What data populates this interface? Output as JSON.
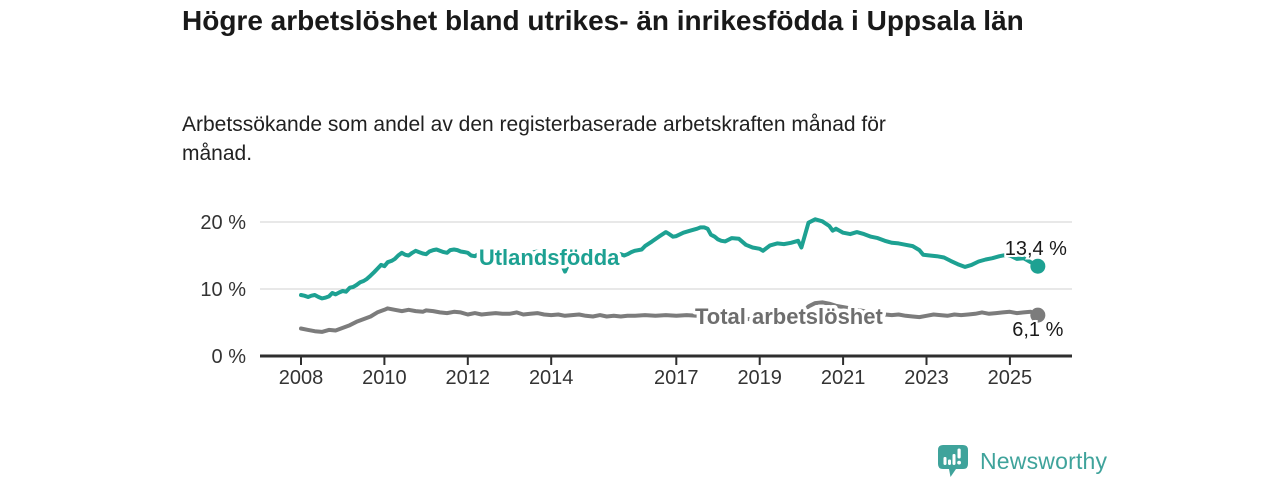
{
  "chart_data": {
    "type": "line",
    "title": "Högre arbetslöshet bland utrikes- än inrikesfödda i Uppsala län",
    "subtitle": "Arbetssökande som andel av den registerbaserade arbetskraften månad för månad.",
    "x_axis": {
      "ticks": [
        2008,
        2010,
        2012,
        2014,
        2017,
        2019,
        2021,
        2023,
        2025
      ],
      "range": [
        2006.8,
        2026.5
      ]
    },
    "y_axis": {
      "unit": "%",
      "range": [
        0,
        21
      ],
      "grid": true,
      "ticks": [
        {
          "value": 0,
          "label": "0 %"
        },
        {
          "value": 10,
          "label": "10 %"
        },
        {
          "value": 20,
          "label": "20 %"
        }
      ]
    },
    "series": [
      {
        "id": "utlandsfodda",
        "name": "Utlandsfödda",
        "color": "#1DA192",
        "end_label": "13,4 %",
        "end_value": 13.4,
        "end_label_offset": [
          -2,
          -11
        ],
        "inline_label": {
          "x": 2013.95,
          "y": 13.6,
          "color": "#1DA192"
        },
        "points": [
          [
            2008.0,
            9.1
          ],
          [
            2008.08,
            9.0
          ],
          [
            2008.17,
            8.8
          ],
          [
            2008.25,
            9.0
          ],
          [
            2008.33,
            9.1
          ],
          [
            2008.42,
            8.8
          ],
          [
            2008.5,
            8.6
          ],
          [
            2008.58,
            8.7
          ],
          [
            2008.67,
            8.9
          ],
          [
            2008.75,
            9.4
          ],
          [
            2008.83,
            9.2
          ],
          [
            2008.92,
            9.5
          ],
          [
            2009.0,
            9.7
          ],
          [
            2009.08,
            9.6
          ],
          [
            2009.17,
            10.2
          ],
          [
            2009.25,
            10.3
          ],
          [
            2009.33,
            10.6
          ],
          [
            2009.42,
            11.0
          ],
          [
            2009.5,
            11.2
          ],
          [
            2009.58,
            11.5
          ],
          [
            2009.67,
            12.0
          ],
          [
            2009.75,
            12.5
          ],
          [
            2009.83,
            13.0
          ],
          [
            2009.92,
            13.6
          ],
          [
            2010.0,
            13.4
          ],
          [
            2010.08,
            14.0
          ],
          [
            2010.17,
            14.2
          ],
          [
            2010.25,
            14.5
          ],
          [
            2010.33,
            15.0
          ],
          [
            2010.42,
            15.4
          ],
          [
            2010.5,
            15.1
          ],
          [
            2010.58,
            15.0
          ],
          [
            2010.67,
            15.4
          ],
          [
            2010.75,
            15.7
          ],
          [
            2010.83,
            15.5
          ],
          [
            2010.92,
            15.3
          ],
          [
            2011.0,
            15.2
          ],
          [
            2011.08,
            15.6
          ],
          [
            2011.17,
            15.8
          ],
          [
            2011.25,
            15.9
          ],
          [
            2011.33,
            15.7
          ],
          [
            2011.42,
            15.5
          ],
          [
            2011.5,
            15.4
          ],
          [
            2011.58,
            15.8
          ],
          [
            2011.67,
            15.9
          ],
          [
            2011.75,
            15.8
          ],
          [
            2011.83,
            15.6
          ],
          [
            2011.92,
            15.5
          ],
          [
            2012.0,
            15.4
          ],
          [
            2012.08,
            15.0
          ],
          [
            2012.17,
            14.9
          ],
          [
            2012.25,
            15.2
          ],
          [
            2012.33,
            15.5
          ],
          [
            2012.5,
            15.4
          ],
          [
            2012.67,
            15.3
          ],
          [
            2012.83,
            15.6
          ],
          [
            2013.0,
            15.3
          ],
          [
            2013.17,
            15.5
          ],
          [
            2013.33,
            15.2
          ],
          [
            2013.5,
            15.4
          ],
          [
            2013.67,
            15.6
          ],
          [
            2013.83,
            15.4
          ],
          [
            2014.0,
            15.2
          ],
          [
            2014.17,
            14.9
          ],
          [
            2014.33,
            12.6
          ],
          [
            2014.5,
            15.0
          ],
          [
            2014.67,
            15.3
          ],
          [
            2014.83,
            15.2
          ],
          [
            2015.0,
            15.4
          ],
          [
            2015.17,
            15.3
          ],
          [
            2015.33,
            15.5
          ],
          [
            2015.5,
            15.4
          ],
          [
            2015.67,
            15.2
          ],
          [
            2015.75,
            15.0
          ],
          [
            2015.83,
            15.2
          ],
          [
            2015.92,
            15.5
          ],
          [
            2016.0,
            15.7
          ],
          [
            2016.17,
            15.9
          ],
          [
            2016.25,
            16.4
          ],
          [
            2016.42,
            17.1
          ],
          [
            2016.58,
            17.8
          ],
          [
            2016.75,
            18.5
          ],
          [
            2016.83,
            18.2
          ],
          [
            2016.92,
            17.8
          ],
          [
            2017.0,
            17.9
          ],
          [
            2017.17,
            18.4
          ],
          [
            2017.33,
            18.7
          ],
          [
            2017.5,
            19.0
          ],
          [
            2017.58,
            19.2
          ],
          [
            2017.67,
            19.2
          ],
          [
            2017.75,
            19.0
          ],
          [
            2017.83,
            18.1
          ],
          [
            2017.92,
            17.8
          ],
          [
            2018.0,
            17.4
          ],
          [
            2018.08,
            17.2
          ],
          [
            2018.17,
            17.1
          ],
          [
            2018.33,
            17.6
          ],
          [
            2018.5,
            17.5
          ],
          [
            2018.67,
            16.6
          ],
          [
            2018.83,
            16.2
          ],
          [
            2019.0,
            16.0
          ],
          [
            2019.08,
            15.7
          ],
          [
            2019.25,
            16.5
          ],
          [
            2019.42,
            16.8
          ],
          [
            2019.58,
            16.7
          ],
          [
            2019.75,
            16.9
          ],
          [
            2019.92,
            17.2
          ],
          [
            2020.0,
            16.2
          ],
          [
            2020.17,
            19.9
          ],
          [
            2020.33,
            20.4
          ],
          [
            2020.5,
            20.1
          ],
          [
            2020.67,
            19.4
          ],
          [
            2020.75,
            18.7
          ],
          [
            2020.83,
            19.0
          ],
          [
            2021.0,
            18.4
          ],
          [
            2021.17,
            18.2
          ],
          [
            2021.33,
            18.5
          ],
          [
            2021.5,
            18.2
          ],
          [
            2021.67,
            17.8
          ],
          [
            2021.83,
            17.6
          ],
          [
            2022.0,
            17.2
          ],
          [
            2022.17,
            16.9
          ],
          [
            2022.33,
            16.8
          ],
          [
            2022.5,
            16.6
          ],
          [
            2022.67,
            16.4
          ],
          [
            2022.83,
            15.8
          ],
          [
            2022.92,
            15.1
          ],
          [
            2023.08,
            15.0
          ],
          [
            2023.25,
            14.9
          ],
          [
            2023.42,
            14.7
          ],
          [
            2023.58,
            14.2
          ],
          [
            2023.75,
            13.7
          ],
          [
            2023.92,
            13.3
          ],
          [
            2024.08,
            13.6
          ],
          [
            2024.25,
            14.1
          ],
          [
            2024.42,
            14.4
          ],
          [
            2024.58,
            14.6
          ],
          [
            2024.75,
            14.9
          ],
          [
            2024.92,
            15.1
          ],
          [
            2025.0,
            15.0
          ],
          [
            2025.17,
            14.5
          ],
          [
            2025.33,
            14.6
          ],
          [
            2025.5,
            14.0
          ],
          [
            2025.58,
            13.7
          ],
          [
            2025.67,
            13.4
          ]
        ]
      },
      {
        "id": "total",
        "name": "Total arbetslöshet",
        "color": "#7C7C7C",
        "end_label": "6,1 %",
        "end_value": 6.1,
        "end_label_offset": [
          0,
          21
        ],
        "inline_label": {
          "x": 2019.7,
          "y": 4.8,
          "color": "#6E6E6E"
        },
        "points": [
          [
            2008.0,
            4.1
          ],
          [
            2008.17,
            3.9
          ],
          [
            2008.33,
            3.7
          ],
          [
            2008.5,
            3.6
          ],
          [
            2008.67,
            3.9
          ],
          [
            2008.83,
            3.8
          ],
          [
            2009.0,
            4.2
          ],
          [
            2009.17,
            4.6
          ],
          [
            2009.33,
            5.1
          ],
          [
            2009.5,
            5.5
          ],
          [
            2009.67,
            5.9
          ],
          [
            2009.83,
            6.5
          ],
          [
            2010.0,
            6.9
          ],
          [
            2010.08,
            7.1
          ],
          [
            2010.25,
            6.9
          ],
          [
            2010.42,
            6.7
          ],
          [
            2010.58,
            6.9
          ],
          [
            2010.75,
            6.7
          ],
          [
            2010.92,
            6.6
          ],
          [
            2011.0,
            6.8
          ],
          [
            2011.17,
            6.7
          ],
          [
            2011.33,
            6.5
          ],
          [
            2011.5,
            6.4
          ],
          [
            2011.67,
            6.6
          ],
          [
            2011.83,
            6.5
          ],
          [
            2012.0,
            6.2
          ],
          [
            2012.17,
            6.4
          ],
          [
            2012.33,
            6.2
          ],
          [
            2012.5,
            6.3
          ],
          [
            2012.67,
            6.4
          ],
          [
            2012.83,
            6.3
          ],
          [
            2013.0,
            6.3
          ],
          [
            2013.17,
            6.5
          ],
          [
            2013.33,
            6.2
          ],
          [
            2013.5,
            6.3
          ],
          [
            2013.67,
            6.4
          ],
          [
            2013.83,
            6.2
          ],
          [
            2014.0,
            6.1
          ],
          [
            2014.17,
            6.2
          ],
          [
            2014.33,
            6.0
          ],
          [
            2014.5,
            6.1
          ],
          [
            2014.67,
            6.2
          ],
          [
            2014.83,
            6.0
          ],
          [
            2015.0,
            5.9
          ],
          [
            2015.17,
            6.1
          ],
          [
            2015.33,
            5.9
          ],
          [
            2015.5,
            6.0
          ],
          [
            2015.67,
            5.9
          ],
          [
            2015.83,
            6.0
          ],
          [
            2016.0,
            6.0
          ],
          [
            2016.25,
            6.1
          ],
          [
            2016.5,
            6.0
          ],
          [
            2016.75,
            6.1
          ],
          [
            2017.0,
            6.0
          ],
          [
            2017.25,
            6.1
          ],
          [
            2017.5,
            6.0
          ],
          [
            2017.75,
            5.9
          ],
          [
            2018.0,
            5.8
          ],
          [
            2018.25,
            5.7
          ],
          [
            2018.5,
            5.6
          ],
          [
            2018.75,
            5.5
          ],
          [
            2019.0,
            5.5
          ],
          [
            2019.25,
            5.6
          ],
          [
            2019.5,
            5.7
          ],
          [
            2019.75,
            5.9
          ],
          [
            2020.0,
            6.2
          ],
          [
            2020.17,
            7.4
          ],
          [
            2020.33,
            7.9
          ],
          [
            2020.5,
            8.0
          ],
          [
            2020.67,
            7.8
          ],
          [
            2020.83,
            7.5
          ],
          [
            2021.0,
            7.3
          ],
          [
            2021.17,
            7.1
          ],
          [
            2021.33,
            6.9
          ],
          [
            2021.5,
            6.7
          ],
          [
            2021.67,
            6.5
          ],
          [
            2021.83,
            6.3
          ],
          [
            2022.0,
            6.2
          ],
          [
            2022.17,
            6.1
          ],
          [
            2022.33,
            6.2
          ],
          [
            2022.5,
            6.0
          ],
          [
            2022.67,
            5.9
          ],
          [
            2022.83,
            5.8
          ],
          [
            2023.0,
            6.0
          ],
          [
            2023.17,
            6.2
          ],
          [
            2023.33,
            6.1
          ],
          [
            2023.5,
            6.0
          ],
          [
            2023.67,
            6.2
          ],
          [
            2023.83,
            6.1
          ],
          [
            2024.0,
            6.2
          ],
          [
            2024.17,
            6.3
          ],
          [
            2024.33,
            6.5
          ],
          [
            2024.5,
            6.3
          ],
          [
            2024.67,
            6.4
          ],
          [
            2024.83,
            6.5
          ],
          [
            2025.0,
            6.6
          ],
          [
            2025.17,
            6.4
          ],
          [
            2025.33,
            6.5
          ],
          [
            2025.5,
            6.6
          ],
          [
            2025.67,
            6.1
          ]
        ]
      }
    ]
  },
  "footer": {
    "brand": "Newsworthy",
    "logo_icon": "bar-chart-speech-bubble-icon"
  },
  "colors": {
    "accent_teal": "#1DA192",
    "line_gray": "#7C7C7C",
    "label_gray": "#6E6E6E",
    "gridline": "#DBDBDB",
    "axis_line": "#2E2E2E",
    "axis_text": "#333333",
    "value_text": "#1A1A1A",
    "logo_teal": "#3FA39B"
  }
}
